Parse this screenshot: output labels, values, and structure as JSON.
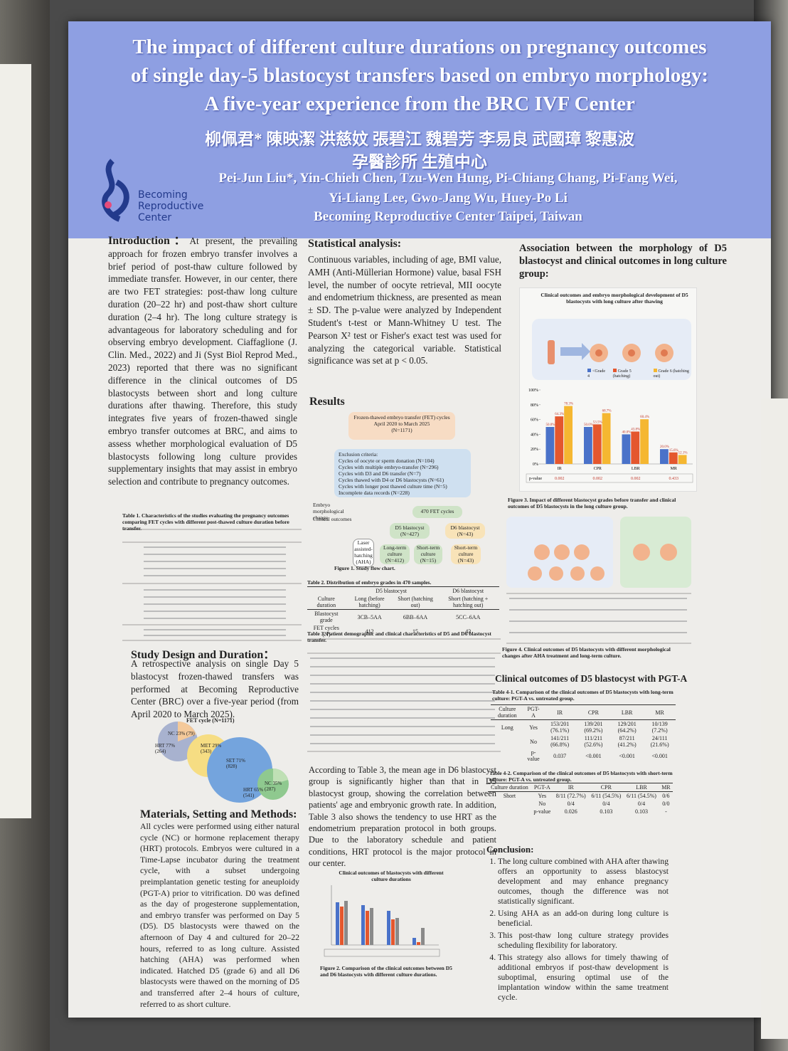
{
  "header": {
    "title_lines": [
      "The impact of different culture durations on pregnancy outcomes",
      "of single day-5 blastocyst transfers based on embryo morphology:",
      "A five-year experience from the BRC IVF Center"
    ],
    "chinese_names": "柳佩君* 陳映潔 洪慈妏 張碧江 魏碧芳 李易良 武國璋 黎惠波",
    "chinese_affiliation": "孕醫診所 生殖中心",
    "author_lines": [
      "Pei-Jun Liu*, Yin-Chieh Chen, Tzu-Wen Hung, Pi-Chiang Chang, Pi-Fang Wei,",
      "Yi-Liang Lee, Gwo-Jang Wu, Huey-Po Li"
    ],
    "institution": "Becoming Reproductive Center Taipei, Taiwan",
    "logo": [
      "Becoming",
      "Reproductive",
      "Center"
    ]
  },
  "introduction": {
    "heading": "Introduction：",
    "text": "At present, the prevailing approach for frozen embryo transfer involves a brief period of post-thaw culture followed by immediate transfer. However, in our center, there are two FET strategies: post-thaw long culture duration (20–22 hr) and post-thaw short culture duration (2–4 hr). The long culture strategy is advantageous for laboratory scheduling and for observing embryo development. Ciaffaglione (J. Clin. Med., 2022) and Ji (Syst Biol Reprod Med., 2023) reported that there was no significant difference in the clinical outcomes of D5 blastocysts between short and long culture durations after thawing. Therefore, this study integrates five years of frozen-thawed single embryo transfer outcomes at BRC, and aims to assess whether morphological evaluation of D5 blastocysts following long culture provides supplementary insights that may assist in embryo selection and contribute to pregnancy outcomes."
  },
  "table1": {
    "caption": "Table 1. Characteristics of the studies evaluating the pregnancy outcomes comparing FET cycles with different post-thawed culture duration before transfer."
  },
  "study_design": {
    "heading": "Study Design and Duration：",
    "text": "A retrospective analysis on single Day 5 blastocyst frozen-thawed transfers was performed at Becoming Reproductive Center (BRC) over a five-year period (from April 2020 to March 2025)."
  },
  "fet_chart": {
    "title": "FET cycle (N=1171)",
    "labels": [
      "NC 23% (79)",
      "HRT 77% (264)",
      "MET 29% (343)",
      "SET 71% (828)",
      "NC 35% (287)",
      "HRT 65% (541)"
    ]
  },
  "materials": {
    "heading": "Materials, Setting and Methods:",
    "text": "All cycles were performed using either natural cycle (NC) or hormone replacement therapy (HRT) protocols. Embryos were cultured in a Time-Lapse incubator during the treatment cycle, with a subset undergoing preimplantation genetic testing for aneuploidy (PGT-A) prior to vitrification. D0 was defined as the day of progesterone supplementation, and embryo transfer was performed on Day 5 (D5). D5 blastocysts were thawed on the afternoon of Day 4 and cultured for 20–22 hours, referred to as long culture. Assisted hatching (AHA) was performed when indicated. Hatched D5 (grade 6) and all D6 blastocysts were thawed on the morning of D5 and transferred after 2–4 hours of culture, referred to as short culture."
  },
  "statistical": {
    "heading": "Statistical analysis:",
    "text": "Continuous variables, including of age, BMI value, AMH (Anti-Müllerian Hormone) value, basal FSH level, the number of oocyte retrieval, MII oocyte and endometrium thickness, are presented as mean ± SD. The p-value were analyzed by Independent Student's t-test or Mann-Whitney U test. The Pearson X² test or Fisher's exact test was used for analyzing the categorical variable. Statistical significance was set at p < 0.05."
  },
  "results": {
    "heading": "Results",
    "text": "According to Table 3, the mean age in D6 blastocyst group is significantly higher than that in D5 blastocyst group, showing the correlation between patients' age and embryonic growth rate. In addition, Table 3 also shows the tendency to use HRT as the endometrium preparation protocol in both groups. Due to the laboratory schedule and patient conditions, HRT protocol is the major protocol in our center."
  },
  "flowchart": {
    "top": [
      "Frozen-thawed embryo transfer (FET) cycles",
      "April 2020 to March 2025",
      "(N=1171)"
    ],
    "exclusion_title": "Exclusion criteria:",
    "exclusion": [
      "Cycles of oocyte or sperm donation (N=104)",
      "Cycles with multiple embryo-transfer (N=296)",
      "Cycles with D3 and D6 transfer (N=7)",
      "Cycles thawed with D4 or D6 blastocysts (N=61)",
      "Cycles with longer post thawed culture time (N=5)",
      "Incomplete data records (N=228)"
    ],
    "legend": [
      "Embryo morphological change",
      "Clinical outcomes"
    ],
    "n470": "470 FET cycles",
    "d5": "D5 blastocyst (N=427)",
    "d6": "D6 blastocyst (N=43)",
    "aha": "Laser assisted-hatching (AHA)",
    "long": "Long-term culture (N=412)",
    "short5": "Short-term culture (N=15)",
    "short6": "Short-term culture (N=43)",
    "caption": "Figure 1. Study flow chart."
  },
  "table2": {
    "caption": "Table 2. Distribution of embryo grades in 470 samples.",
    "head": [
      "Culture duration",
      "Long (before hatching)",
      "Short (hatching out)",
      "Short (hatching + hatching out)"
    ],
    "groups": [
      "D5 blastocyst",
      "D6 blastocyst"
    ],
    "rows": [
      [
        "Blastocyst grade",
        "3CB–5AA",
        "6BB–6AA",
        "5CC–6AA"
      ],
      [
        "FET cycles (N)",
        "412",
        "15",
        "43"
      ]
    ]
  },
  "table3": {
    "caption": "Table 3. Patient demographic and clinical characteristics of D5 and D6 blastocyst transfer."
  },
  "figure2": {
    "title": "Clinical outcomes of blastocysts with different culture durations",
    "caption": "Figure 2. Comparison of the clinical outcomes between D5 and D6 blastocysts with different culture durations."
  },
  "association": {
    "heading": "Association between the morphology of D5 blastocyst and clinical outcomes in long culture group:"
  },
  "chart_data": {
    "type": "bar",
    "title": "Clinical outcomes and embryo morphological development of D5 blastocysts with long culture after thawing",
    "categories": [
      "IR",
      "CPR",
      "LBR",
      "MR"
    ],
    "series": [
      {
        "name": "<Grade 4",
        "color": "#4a72c9",
        "values": [
          50.0,
          50.0,
          40.0,
          20.0
        ],
        "value_labels": [
          "50.0%",
          "50.0%",
          "40.0%",
          "20.0%"
        ]
      },
      {
        "name": "Grade 5 (hatching)",
        "color": "#e4572e",
        "values": [
          64.3,
          53.5,
          43.8,
          15.6
        ],
        "value_labels": [
          "64.3%",
          "53.5%",
          "43.8%",
          "15.6%"
        ]
      },
      {
        "name": "Grade 6 (hatching out)",
        "color": "#f5b731",
        "values": [
          78.3,
          68.7,
          60.4,
          12.1
        ],
        "value_labels": [
          "78.3%",
          "68.7%",
          "60.4%",
          "12.1%"
        ]
      }
    ],
    "ylim": [
      0,
      100
    ],
    "yticks": [
      {
        "value": 0,
        "label": "0%"
      },
      {
        "value": 20,
        "label": "20%"
      },
      {
        "value": 40,
        "label": "40%"
      },
      {
        "value": 60,
        "label": "60%"
      },
      {
        "value": 80,
        "label": "80%"
      },
      {
        "value": 100,
        "label": "100%"
      }
    ],
    "p_label": "p-value",
    "p_values": [
      "0.002",
      "0.002",
      "0.002",
      "0.433"
    ],
    "caption": "Figure 3. Impact of different blastocyst grades before transfer and clinical outcomes of D5 blastocysts in the long culture group."
  },
  "figure4": {
    "caption": "Figure 4. Clinical outcomes of D5 blastocysts with different morphological changes after AHA treatment and long-term culture."
  },
  "pgta": {
    "heading": "Clinical outcomes of D5 blastocyst with PGT-A",
    "table41": {
      "caption": "Table 4-1. Comparison of the clinical outcomes of D5 blastocysts with long-term culture: PGT-A vs. untreated group.",
      "head": [
        "Culture duration",
        "PGT-A",
        "IR",
        "CPR",
        "LBR",
        "MR"
      ],
      "rows": [
        [
          "Long",
          "Yes",
          "153/201 (76.1%)",
          "139/201 (69.2%)",
          "129/201 (64.2%)",
          "10/139 (7.2%)"
        ],
        [
          "",
          "No",
          "141/211 (66.8%)",
          "111/211 (52.6%)",
          "87/211 (41.2%)",
          "24/111 (21.6%)"
        ],
        [
          "",
          "p-value",
          "0.037",
          "<0.001",
          "<0.001",
          "<0.001"
        ]
      ]
    },
    "table42": {
      "caption": "Table 4-2. Comparison of the clinical outcomes of D5 blastocysts with short-term culture: PGT-A vs. untreated group.",
      "head": [
        "Culture duration",
        "PGT-A",
        "IR",
        "CPR",
        "LBR",
        "MR"
      ],
      "rows": [
        [
          "Short",
          "Yes",
          "8/11 (72.7%)",
          "6/11 (54.5%)",
          "6/11 (54.5%)",
          "0/6"
        ],
        [
          "",
          "No",
          "0/4",
          "0/4",
          "0/4",
          "0/0"
        ],
        [
          "",
          "p-value",
          "0.026",
          "0.103",
          "0.103",
          "-"
        ]
      ]
    }
  },
  "conclusion": {
    "heading": "Conclusion:",
    "items": [
      "The long culture combined with AHA after thawing offers an opportunity to assess blastocyst development and may enhance pregnancy outcomes, though the difference was not statistically significant.",
      "Using AHA as an add-on during long culture is beneficial.",
      "This post-thaw long culture strategy provides scheduling flexibility for laboratory.",
      "This strategy also allows for timely thawing of additional embryos if post-thaw development is suboptimal, ensuring optimal use of the implantation window within the same treatment cycle."
    ]
  }
}
